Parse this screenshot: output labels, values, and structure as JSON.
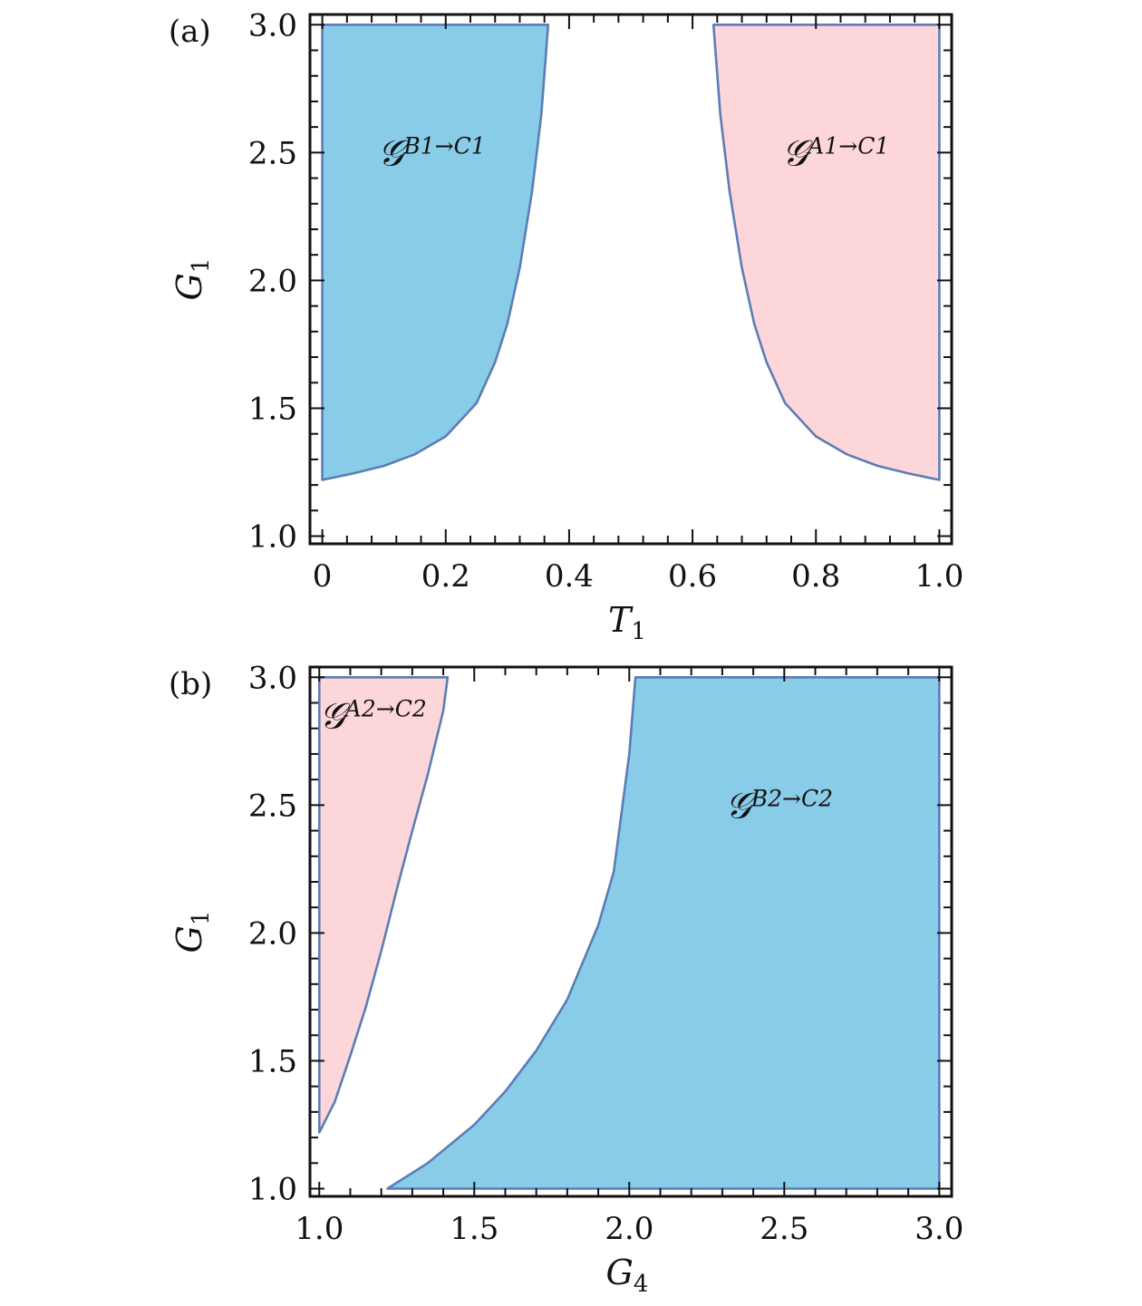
{
  "colors": {
    "blue_fill": "#89cce8",
    "pink_fill": "#fdd6da",
    "boundary": "#5b7db5",
    "frame": "#111111"
  },
  "chart_data": [
    {
      "type": "area",
      "panel_label": "(a)",
      "xlabel": "T",
      "xlabel_sub": "1",
      "ylabel": "G",
      "ylabel_sub": "1",
      "xlim": [
        -0.02,
        1.02
      ],
      "ylim": [
        0.97,
        3.04
      ],
      "xticks": [
        0,
        0.2,
        0.4,
        0.6,
        0.8,
        1.0
      ],
      "xtick_labels": [
        "0",
        "0.2",
        "0.4",
        "0.6",
        "0.8",
        "1.0"
      ],
      "yticks": [
        1.0,
        1.5,
        2.0,
        2.5,
        3.0
      ],
      "ytick_labels": [
        "1.0",
        "1.5",
        "2.0",
        "2.5",
        "3.0"
      ],
      "grid": false,
      "regions": [
        {
          "name": "B1 to C1",
          "label_main": "𝒢",
          "label_sup": "B1→C1",
          "color": "blue",
          "label_at": [
            0.09,
            2.45
          ],
          "boundary": [
            [
              0,
              3.0
            ],
            [
              0,
              1.22
            ],
            [
              0.05,
              1.245
            ],
            [
              0.1,
              1.275
            ],
            [
              0.15,
              1.32
            ],
            [
              0.2,
              1.39
            ],
            [
              0.25,
              1.52
            ],
            [
              0.28,
              1.68
            ],
            [
              0.3,
              1.83
            ],
            [
              0.32,
              2.05
            ],
            [
              0.34,
              2.35
            ],
            [
              0.355,
              2.65
            ],
            [
              0.366,
              3.0
            ]
          ]
        },
        {
          "name": "A1 to C1",
          "label_main": "𝒢",
          "label_sup": "A1→C1",
          "color": "pink",
          "label_at": [
            0.745,
            2.45
          ],
          "boundary": [
            [
              1.0,
              3.0
            ],
            [
              1.0,
              1.22
            ],
            [
              0.95,
              1.245
            ],
            [
              0.9,
              1.275
            ],
            [
              0.85,
              1.32
            ],
            [
              0.8,
              1.39
            ],
            [
              0.75,
              1.52
            ],
            [
              0.72,
              1.68
            ],
            [
              0.7,
              1.83
            ],
            [
              0.68,
              2.05
            ],
            [
              0.66,
              2.35
            ],
            [
              0.645,
              2.65
            ],
            [
              0.634,
              3.0
            ]
          ]
        }
      ]
    },
    {
      "type": "area",
      "panel_label": "(b)",
      "xlabel": "G",
      "xlabel_sub": "4",
      "ylabel": "G",
      "ylabel_sub": "1",
      "xlim": [
        0.97,
        3.04
      ],
      "ylim": [
        0.97,
        3.04
      ],
      "xticks": [
        1.0,
        1.5,
        2.0,
        2.5,
        3.0
      ],
      "xtick_labels": [
        "1.0",
        "1.5",
        "2.0",
        "2.5",
        "3.0"
      ],
      "yticks": [
        1.0,
        1.5,
        2.0,
        2.5,
        3.0
      ],
      "ytick_labels": [
        "1.0",
        "1.5",
        "2.0",
        "2.5",
        "3.0"
      ],
      "grid": false,
      "regions": [
        {
          "name": "A2 to C2",
          "label_main": "𝒢",
          "label_sup": "A2→C2",
          "color": "pink",
          "label_at": [
            1.0,
            2.8
          ],
          "boundary": [
            [
              1.0,
              3.0
            ],
            [
              1.0,
              1.22
            ],
            [
              1.05,
              1.34
            ],
            [
              1.1,
              1.52
            ],
            [
              1.15,
              1.71
            ],
            [
              1.2,
              1.93
            ],
            [
              1.25,
              2.17
            ],
            [
              1.3,
              2.4
            ],
            [
              1.35,
              2.62
            ],
            [
              1.4,
              2.87
            ],
            [
              1.414,
              3.0
            ]
          ]
        },
        {
          "name": "B2 to C2",
          "label_main": "𝒢",
          "label_sup": "B2→C2",
          "color": "blue",
          "label_at": [
            2.31,
            2.45
          ],
          "boundary": [
            [
              1.22,
              1.0
            ],
            [
              1.35,
              1.1
            ],
            [
              1.5,
              1.25
            ],
            [
              1.6,
              1.38
            ],
            [
              1.7,
              1.54
            ],
            [
              1.8,
              1.74
            ],
            [
              1.9,
              2.03
            ],
            [
              1.95,
              2.24
            ],
            [
              2.0,
              2.7
            ],
            [
              2.02,
              3.0
            ],
            [
              3.0,
              3.0
            ],
            [
              3.0,
              1.0
            ]
          ]
        }
      ]
    }
  ]
}
